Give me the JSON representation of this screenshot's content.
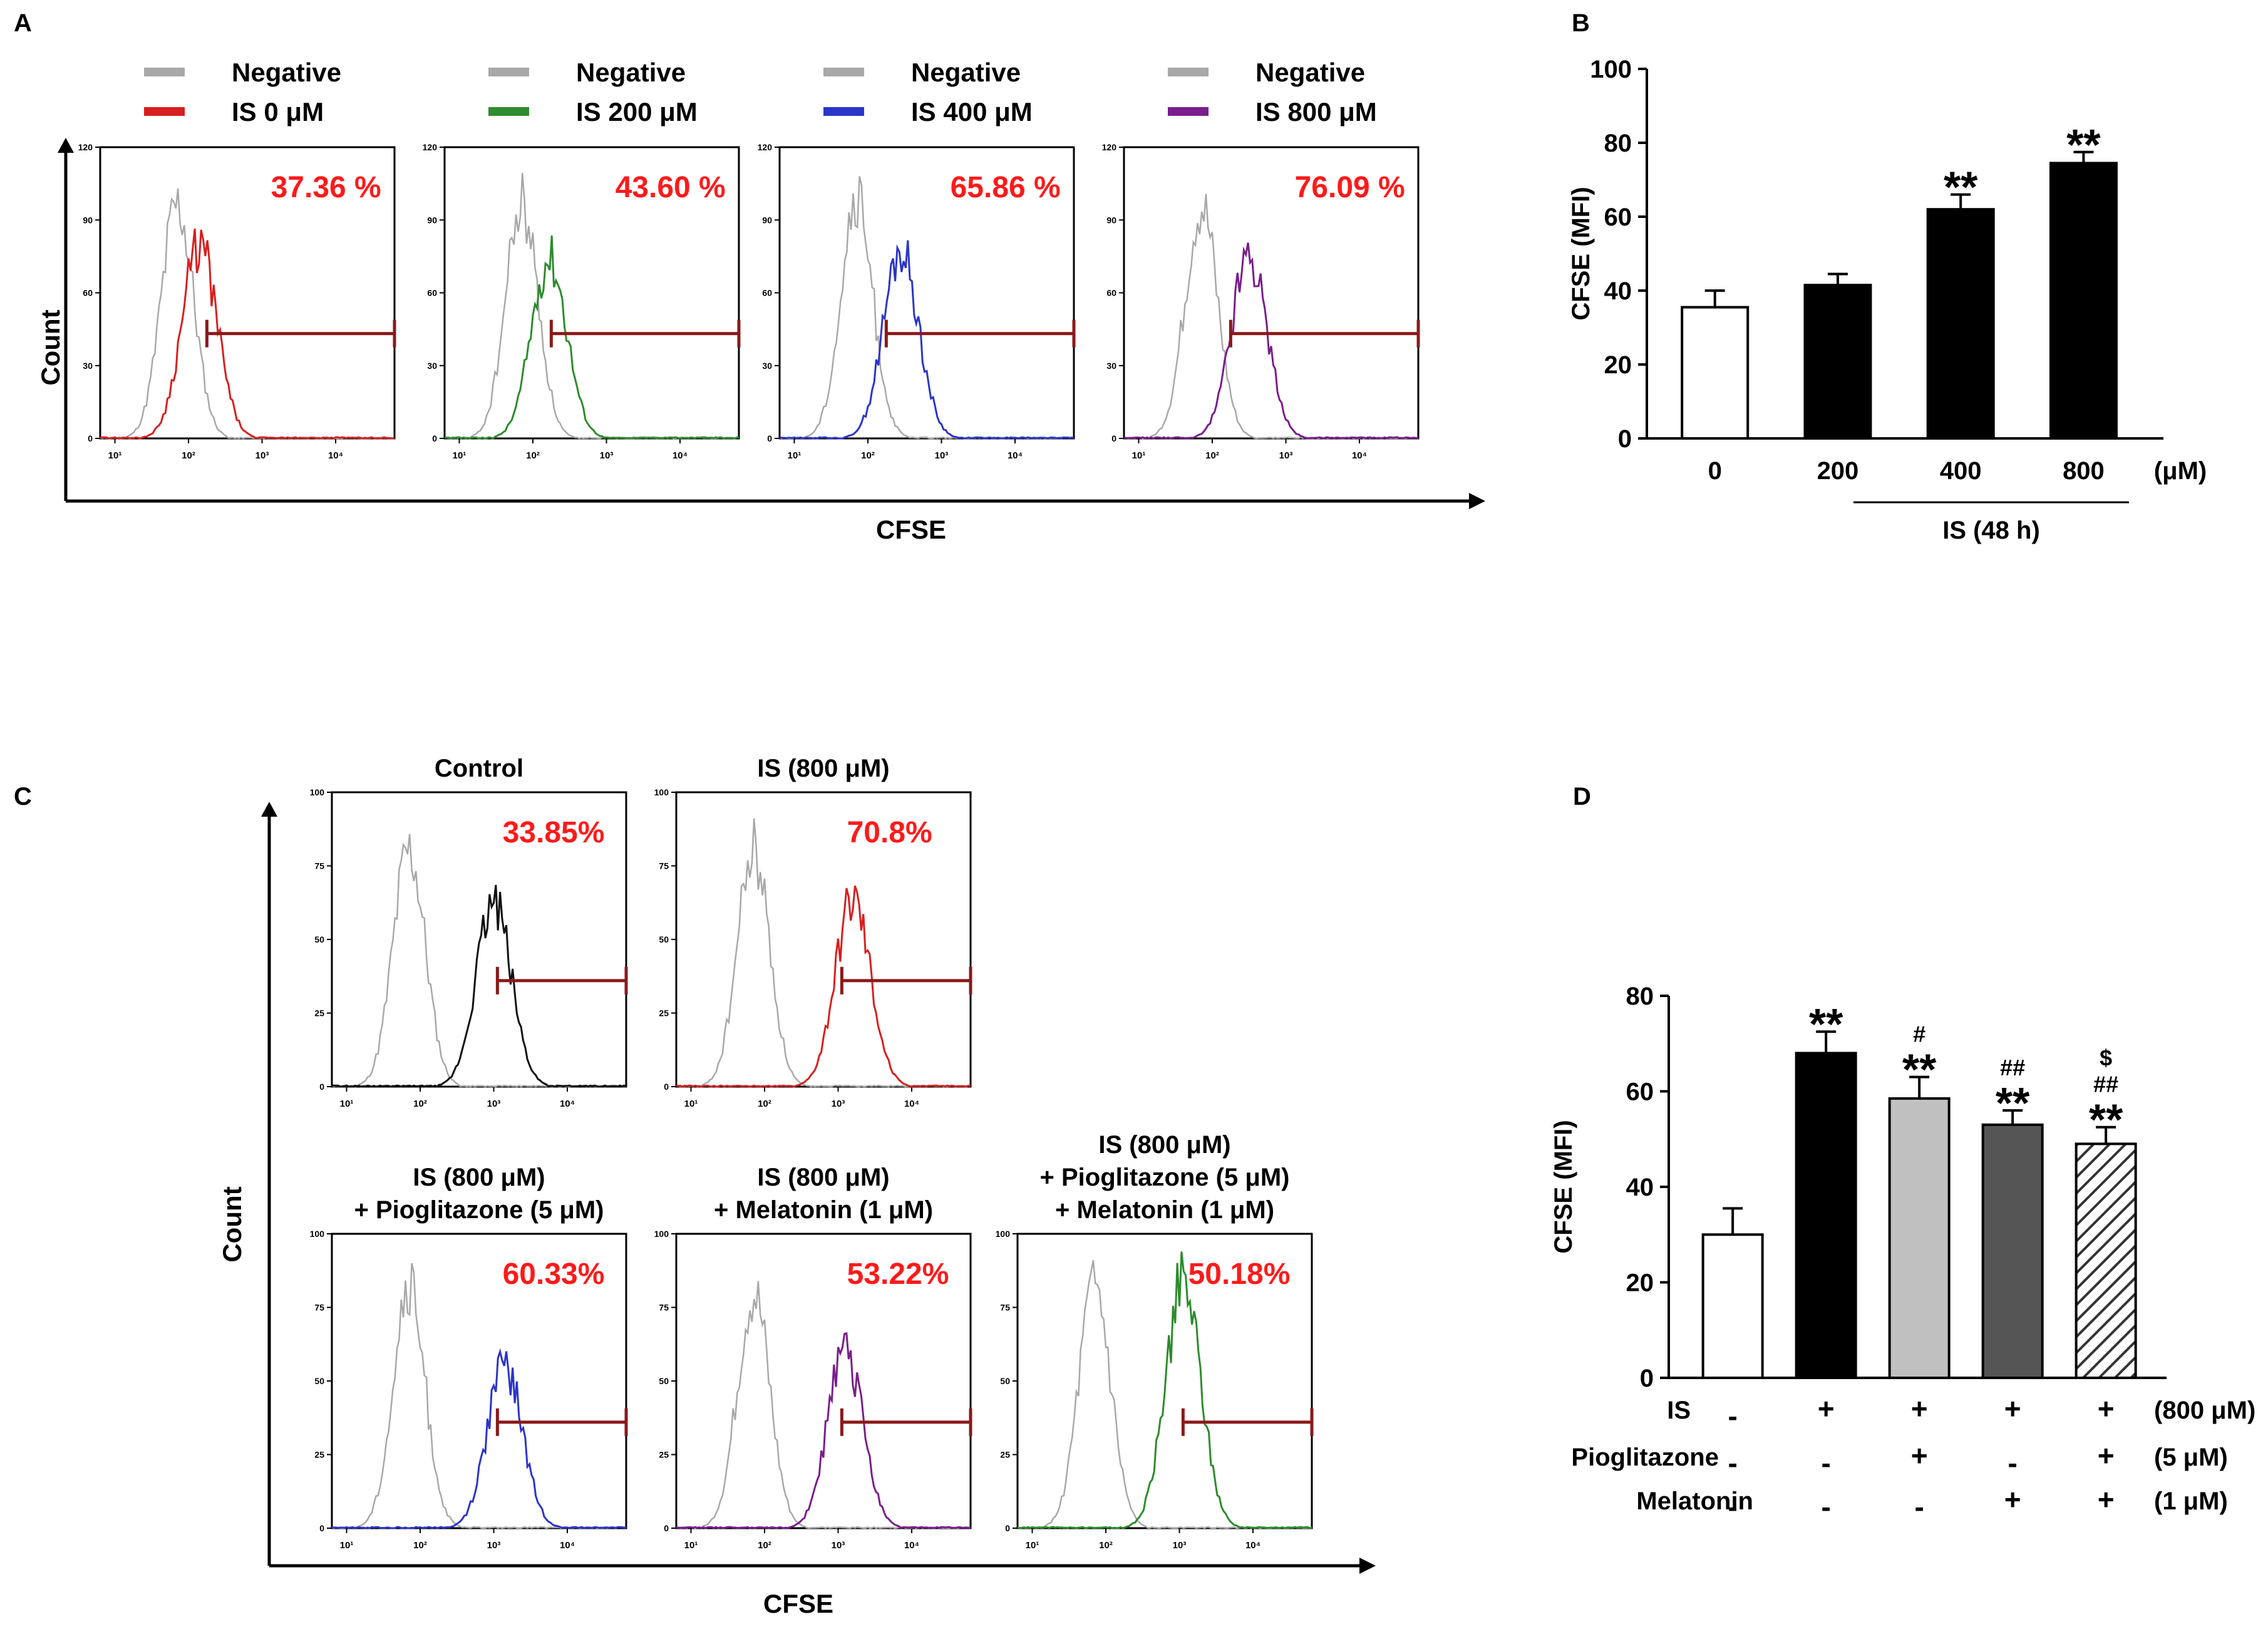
{
  "colors": {
    "negative": "#a8a8a8",
    "is0": "#d81f1f",
    "is200": "#2e8b2e",
    "is400": "#2b35c8",
    "is800": "#7a1e8c",
    "black": "#111111",
    "gate": "#8b1a1a",
    "percent": "#ff1a1a",
    "light_gray_bar": "#c0c0c0",
    "dark_gray_bar": "#555555"
  },
  "panel_a": {
    "letter": "A",
    "y_label": "Count",
    "x_label": "CFSE",
    "x_ticks": [
      "10¹",
      "10²",
      "10³",
      "10⁴"
    ],
    "histograms": [
      {
        "legend": [
          "Negative",
          "IS 0 μM"
        ],
        "color_key": "is0",
        "percent": "37.36 %",
        "y_ticks": [
          "0",
          "30",
          "60",
          "90",
          "120"
        ],
        "neg_peak_log": 1.85,
        "peak_log": 2.15,
        "peak_h": 0.66,
        "gate_start_log": 2.25
      },
      {
        "legend": [
          "Negative",
          "IS 200 μM"
        ],
        "color_key": "is200",
        "percent": "43.60 %",
        "y_ticks": [
          "0",
          "30",
          "60",
          "90",
          "120"
        ],
        "neg_peak_log": 1.85,
        "peak_log": 2.22,
        "peak_h": 0.62,
        "gate_start_log": 2.25
      },
      {
        "legend": [
          "Negative",
          "IS 400 μM"
        ],
        "color_key": "is400",
        "percent": "65.86 %",
        "y_ticks": [
          "0",
          "30",
          "60",
          "90",
          "120"
        ],
        "neg_peak_log": 1.85,
        "peak_log": 2.45,
        "peak_h": 0.64,
        "gate_start_log": 2.25
      },
      {
        "legend": [
          "Negative",
          "IS 800 μM"
        ],
        "color_key": "is800",
        "percent": "76.09 %",
        "y_ticks": [
          "0",
          "30",
          "60",
          "90",
          "120"
        ],
        "neg_peak_log": 1.85,
        "peak_log": 2.5,
        "peak_h": 0.64,
        "gate_start_log": 2.25
      }
    ]
  },
  "panel_c": {
    "letter": "C",
    "y_label": "Count",
    "x_label": "CFSE",
    "x_ticks": [
      "10¹",
      "10²",
      "10³",
      "10⁴"
    ],
    "histograms": [
      {
        "title": [
          "Control"
        ],
        "color_key": "black",
        "percent": "33.85%",
        "y_ticks": [
          "0",
          "25",
          "50",
          "75",
          "100"
        ],
        "neg_peak_log": 1.85,
        "peak_log": 3.0,
        "peak_h": 0.62,
        "gate_start_log": 3.05
      },
      {
        "title": [
          "IS (800 μM)"
        ],
        "color_key": "is0",
        "percent": "70.8%",
        "y_ticks": [
          "0",
          "25",
          "50",
          "75",
          "100"
        ],
        "neg_peak_log": 1.85,
        "peak_log": 3.2,
        "peak_h": 0.64,
        "gate_start_log": 3.05
      },
      {
        "title": [
          "IS  (800 μM)",
          "+ Pioglitazone  (5 μM)"
        ],
        "color_key": "is400",
        "percent": "60.33%",
        "y_ticks": [
          "0",
          "25",
          "50",
          "75",
          "100"
        ],
        "neg_peak_log": 1.85,
        "peak_log": 3.15,
        "peak_h": 0.55,
        "gate_start_log": 3.05
      },
      {
        "title": [
          "IS  (800 μM)",
          "+ Melatonin (1 μM)"
        ],
        "color_key": "is800",
        "percent": "53.22%",
        "y_ticks": [
          "0",
          "25",
          "50",
          "75",
          "100"
        ],
        "neg_peak_log": 1.85,
        "peak_log": 3.1,
        "peak_h": 0.6,
        "gate_start_log": 3.05
      },
      {
        "title": [
          "IS  (800 μM)",
          "+ Pioglitazone  (5 μM)",
          "+ Melatonin (1 μM)"
        ],
        "color_key": "is200",
        "percent": "50.18%",
        "y_ticks": [
          "0",
          "25",
          "50",
          "75",
          "100"
        ],
        "neg_peak_log": 1.85,
        "peak_log": 3.05,
        "peak_h": 0.83,
        "gate_start_log": 3.05
      }
    ]
  },
  "chart_data": [
    {
      "panel": "A",
      "type": "histogram",
      "x_label": "CFSE",
      "y_label": "Count",
      "series": [
        {
          "name": "IS 0 μM",
          "gated_percent": 37.36
        },
        {
          "name": "IS 200 μM",
          "gated_percent": 43.6
        },
        {
          "name": "IS 400 μM",
          "gated_percent": 65.86
        },
        {
          "name": "IS 800 μM",
          "gated_percent": 76.09
        }
      ]
    },
    {
      "panel": "B",
      "letter": "B",
      "type": "bar",
      "ylabel": "CFSE (MFI)",
      "ylim": [
        0,
        100
      ],
      "yticks": [
        "0",
        "20",
        "40",
        "60",
        "80",
        "100"
      ],
      "categories": [
        "0",
        "200",
        "400",
        "800"
      ],
      "unit": "(μM)",
      "group_label": "IS (48 h)",
      "values": [
        35.5,
        41.5,
        62,
        74.5
      ],
      "errors": [
        4.5,
        3,
        4,
        3
      ],
      "fills": [
        "white",
        "black",
        "black",
        "black"
      ],
      "annotations": [
        "",
        "",
        "**",
        "**"
      ]
    },
    {
      "panel": "C",
      "type": "histogram",
      "x_label": "CFSE",
      "y_label": "Count",
      "series": [
        {
          "name": "Control",
          "gated_percent": 33.85
        },
        {
          "name": "IS (800 μM)",
          "gated_percent": 70.8
        },
        {
          "name": "IS (800 μM) + Pioglitazone (5 μM)",
          "gated_percent": 60.33
        },
        {
          "name": "IS (800 μM) + Melatonin (1 μM)",
          "gated_percent": 53.22
        },
        {
          "name": "IS (800 μM) + Pioglitazone (5 μM) + Melatonin (1 μM)",
          "gated_percent": 50.18
        }
      ]
    },
    {
      "panel": "D",
      "letter": "D",
      "type": "bar",
      "ylabel": "CFSE (MFI)",
      "ylim": [
        0,
        80
      ],
      "yticks": [
        "0",
        "20",
        "40",
        "60",
        "80"
      ],
      "values": [
        30,
        68,
        58.5,
        53,
        49
      ],
      "errors": [
        5.5,
        4.5,
        4.5,
        3,
        3.5
      ],
      "fills": [
        "white",
        "black",
        "lightgray",
        "darkgray",
        "hatched"
      ],
      "annotations": [
        [],
        [
          "**"
        ],
        [
          "#",
          "**"
        ],
        [
          "##",
          "**"
        ],
        [
          "$",
          "##",
          "**"
        ]
      ],
      "table": [
        {
          "label": "IS",
          "signs": [
            "-",
            "+",
            "+",
            "+",
            "+"
          ],
          "unit": "(800 μM)"
        },
        {
          "label": "Pioglitazone",
          "signs": [
            "-",
            "-",
            "+",
            "-",
            "+"
          ],
          "unit": "(5 μM)"
        },
        {
          "label": "Melatonin",
          "signs": [
            "-",
            "-",
            "-",
            "+",
            "+"
          ],
          "unit": "(1 μM)"
        }
      ]
    }
  ]
}
